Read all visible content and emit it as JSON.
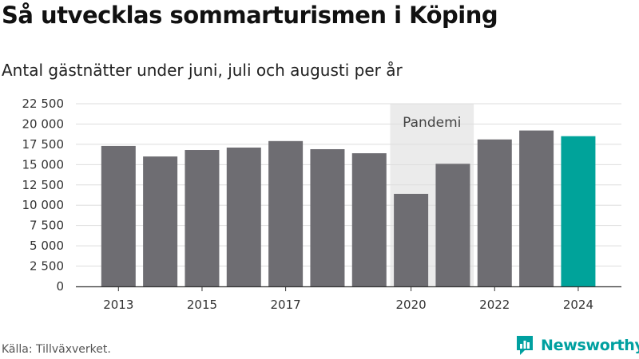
{
  "header": {
    "title": "Så utvecklas sommarturismen i Köping",
    "subtitle": "Antal gästnätter under juni, juli och augusti per år"
  },
  "footer": {
    "source": "Källa: Tillväxverket.",
    "brand": "Newsworthy"
  },
  "colors": {
    "bar": "#6e6d72",
    "highlight": "#00a39a",
    "shade": "#ebebeb",
    "grid": "#dddddd",
    "brand": "#00a0a0"
  },
  "chart_data": {
    "type": "bar",
    "categories": [
      "2013",
      "2014",
      "2015",
      "2016",
      "2017",
      "2018",
      "2019",
      "2020",
      "2021",
      "2022",
      "2023",
      "2024"
    ],
    "values": [
      17300,
      16000,
      16800,
      17100,
      17900,
      16900,
      16400,
      11400,
      15100,
      18100,
      19200,
      18500
    ],
    "highlight_category": "2024",
    "x_tick_labels": [
      "2013",
      "2015",
      "2017",
      "2020",
      "2022",
      "2024"
    ],
    "y_ticks": [
      0,
      2500,
      5000,
      7500,
      10000,
      12500,
      15000,
      17500,
      20000,
      22500
    ],
    "y_tick_labels": [
      "0",
      "2 500",
      "5 000",
      "7 500",
      "10 000",
      "12 500",
      "15 000",
      "17 500",
      "20 000",
      "22 500"
    ],
    "ylim": [
      0,
      22500
    ],
    "grid": true,
    "shaded_period": {
      "label": "Pandemi",
      "from": "2020",
      "to": "2021"
    },
    "title": "Så utvecklas sommarturismen i Köping",
    "subtitle": "Antal gästnätter under juni, juli och augusti per år",
    "xlabel": "",
    "ylabel": ""
  }
}
